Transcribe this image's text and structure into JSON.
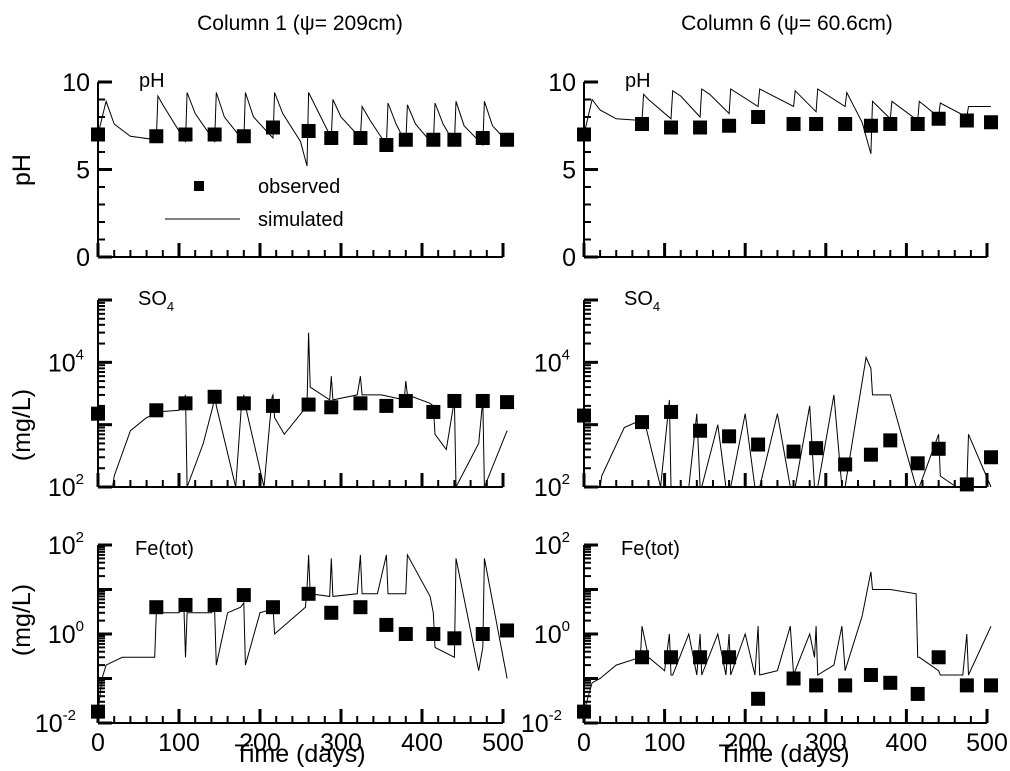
{
  "columns": [
    {
      "title": "Column 1 (ψ= 209cm)"
    },
    {
      "title": "Column 6 (ψ= 60.6cm)"
    }
  ],
  "row_labels": {
    "ph_y": "pH",
    "so4_y": "(mg/L)",
    "fe_y": "(mg/L)",
    "ph_panel": "pH",
    "so4_panel": "SO",
    "so4_sub": "4",
    "fe_panel": "Fe(tot)"
  },
  "xlabel": "Time (days)",
  "legend": {
    "observed": "observed",
    "simulated": "simulated"
  },
  "ticks": {
    "x": [
      "0",
      "100",
      "200",
      "300",
      "400",
      "500"
    ],
    "ph": [
      "0",
      "5",
      "10"
    ],
    "so4": [
      {
        "base": "10",
        "exp": "2"
      },
      {
        "base": "10",
        "exp": "4"
      }
    ],
    "fe": [
      {
        "base": "10",
        "exp": "-2"
      },
      {
        "base": "10",
        "exp": "0"
      },
      {
        "base": "10",
        "exp": "2"
      }
    ]
  },
  "chart_data": [
    {
      "type": "scatter",
      "panel": "Column 1 pH",
      "xlim": [
        0,
        500
      ],
      "ylim": [
        0,
        10
      ],
      "series": [
        {
          "name": "observed",
          "x": [
            0,
            72,
            108,
            144,
            180,
            216,
            260,
            288,
            324,
            356,
            380,
            414,
            440,
            475,
            505
          ],
          "y": [
            7.0,
            6.9,
            7.0,
            7.0,
            6.9,
            7.4,
            7.2,
            6.8,
            6.8,
            6.4,
            6.7,
            6.7,
            6.7,
            6.8,
            6.7
          ]
        },
        {
          "name": "simulated",
          "x": [
            0,
            10,
            20,
            40,
            72,
            74,
            80,
            108,
            110,
            120,
            144,
            146,
            156,
            180,
            182,
            192,
            216,
            218,
            228,
            250,
            258,
            260,
            288,
            290,
            300,
            324,
            326,
            336,
            356,
            358,
            368,
            380,
            382,
            392,
            414,
            416,
            426,
            440,
            442,
            452,
            475,
            477,
            487,
            505
          ],
          "y": [
            7.0,
            8.9,
            7.6,
            6.9,
            6.7,
            9.2,
            8.7,
            6.6,
            9.4,
            8.2,
            6.6,
            9.4,
            8.0,
            6.6,
            9.4,
            8.0,
            6.8,
            9.4,
            8.2,
            6.6,
            5.2,
            9.4,
            6.8,
            9.0,
            8.0,
            6.8,
            8.6,
            7.8,
            6.4,
            8.8,
            7.6,
            6.5,
            8.7,
            7.6,
            6.4,
            8.8,
            7.6,
            6.5,
            8.9,
            7.5,
            6.4,
            8.9,
            7.5,
            6.6
          ]
        }
      ]
    },
    {
      "type": "scatter",
      "panel": "Column 6 pH",
      "xlim": [
        0,
        500
      ],
      "ylim": [
        0,
        10
      ],
      "series": [
        {
          "name": "observed",
          "x": [
            0,
            72,
            108,
            144,
            180,
            216,
            260,
            288,
            324,
            356,
            380,
            414,
            440,
            475,
            505
          ],
          "y": [
            7.0,
            7.6,
            7.4,
            7.4,
            7.5,
            8.0,
            7.6,
            7.6,
            7.6,
            7.5,
            7.6,
            7.6,
            7.9,
            7.8,
            7.7
          ]
        },
        {
          "name": "simulated",
          "x": [
            0,
            10,
            20,
            40,
            72,
            74,
            80,
            108,
            110,
            120,
            144,
            146,
            156,
            180,
            182,
            216,
            218,
            260,
            262,
            288,
            290,
            324,
            326,
            345,
            356,
            358,
            380,
            382,
            414,
            416,
            440,
            442,
            475,
            477,
            505
          ],
          "y": [
            7.0,
            9.0,
            8.4,
            7.9,
            7.8,
            9.3,
            9.0,
            7.9,
            9.5,
            9.2,
            8.0,
            9.6,
            9.3,
            8.2,
            9.6,
            8.6,
            9.6,
            8.6,
            9.5,
            8.3,
            9.6,
            8.6,
            9.4,
            7.7,
            5.9,
            8.9,
            7.9,
            8.9,
            7.8,
            8.9,
            8.0,
            8.8,
            8.0,
            8.6,
            8.6
          ]
        }
      ]
    },
    {
      "type": "scatter",
      "panel": "Column 1 SO4",
      "xlim": [
        0,
        500
      ],
      "ylim": [
        100,
        100000
      ],
      "yscale": "log",
      "series": [
        {
          "name": "observed",
          "x": [
            0,
            72,
            108,
            144,
            180,
            216,
            260,
            288,
            324,
            356,
            380,
            414,
            440,
            475,
            505
          ],
          "y": [
            1500,
            1700,
            2200,
            2800,
            2200,
            2000,
            2100,
            1900,
            2200,
            2000,
            2400,
            1600,
            2400,
            2400,
            2300
          ]
        },
        {
          "name": "simulated",
          "x": [
            0,
            18,
            20,
            40,
            60,
            72,
            74,
            100,
            106,
            108,
            110,
            130,
            142,
            144,
            146,
            170,
            177,
            180,
            182,
            205,
            215,
            216,
            218,
            230,
            258,
            260,
            262,
            286,
            288,
            290,
            320,
            324,
            326,
            350,
            378,
            380,
            382,
            410,
            414,
            416,
            430,
            440,
            442,
            470,
            475,
            477,
            505
          ],
          "y": [
            100,
            100,
            150,
            800,
            1300,
            1500,
            1600,
            1700,
            2500,
            3000,
            100,
            500,
            2000,
            3500,
            2000,
            100,
            2000,
            3000,
            2000,
            100,
            2800,
            3000,
            1300,
            700,
            2000,
            30000,
            4000,
            2500,
            6000,
            2500,
            3000,
            6000,
            3000,
            3000,
            2500,
            5000,
            3000,
            2200,
            2000,
            700,
            400,
            2500,
            100,
            500,
            2500,
            100,
            800
          ]
        }
      ]
    },
    {
      "type": "scatter",
      "panel": "Column 6 SO4",
      "xlim": [
        0,
        500
      ],
      "ylim": [
        100,
        100000
      ],
      "yscale": "log",
      "series": [
        {
          "name": "observed",
          "x": [
            0,
            72,
            108,
            144,
            180,
            216,
            260,
            288,
            324,
            356,
            380,
            414,
            440,
            475,
            505
          ],
          "y": [
            1400,
            1100,
            1600,
            800,
            650,
            480,
            370,
            420,
            230,
            330,
            560,
            240,
            410,
            110,
            300
          ]
        },
        {
          "name": "simulated",
          "x": [
            0,
            20,
            22,
            50,
            72,
            74,
            95,
            106,
            108,
            110,
            130,
            140,
            144,
            146,
            166,
            176,
            180,
            182,
            200,
            212,
            216,
            218,
            240,
            256,
            260,
            262,
            280,
            286,
            288,
            290,
            310,
            320,
            324,
            326,
            350,
            356,
            358,
            380,
            412,
            414,
            416,
            440,
            442,
            462,
            475,
            477,
            505
          ],
          "y": [
            100,
            100,
            150,
            900,
            1200,
            1300,
            100,
            2500,
            100,
            100,
            100,
            1500,
            100,
            100,
            1000,
            100,
            100,
            100,
            1500,
            100,
            100,
            100,
            1500,
            100,
            100,
            100,
            2000,
            100,
            100,
            100,
            3000,
            100,
            100,
            150,
            12000,
            8000,
            3000,
            3000,
            100,
            100,
            100,
            700,
            150,
            100,
            100,
            700,
            100
          ]
        }
      ]
    },
    {
      "type": "scatter",
      "panel": "Column 1 Fe(tot)",
      "xlim": [
        0,
        500
      ],
      "ylim": [
        0.01,
        100
      ],
      "yscale": "log",
      "series": [
        {
          "name": "observed",
          "x": [
            0,
            72,
            108,
            144,
            180,
            216,
            260,
            288,
            324,
            356,
            380,
            414,
            440,
            475,
            505
          ],
          "y": [
            0.018,
            4.0,
            4.5,
            4.5,
            7.5,
            4.0,
            8.0,
            3.0,
            4.0,
            1.6,
            1.0,
            1.0,
            0.8,
            1.0,
            1.2
          ]
        },
        {
          "name": "simulated",
          "x": [
            0,
            5,
            10,
            30,
            70,
            72,
            80,
            100,
            106,
            108,
            110,
            130,
            140,
            144,
            146,
            160,
            176,
            180,
            182,
            200,
            212,
            216,
            218,
            256,
            258,
            260,
            262,
            286,
            288,
            290,
            320,
            324,
            326,
            345,
            356,
            358,
            380,
            382,
            410,
            414,
            416,
            440,
            442,
            470,
            475,
            477,
            505
          ],
          "y": [
            0.018,
            0.1,
            0.2,
            0.3,
            0.3,
            3.0,
            3.0,
            3.0,
            4.0,
            0.3,
            3.0,
            3.0,
            3.0,
            3.5,
            0.2,
            3.0,
            4.0,
            5.0,
            0.2,
            3.0,
            3.5,
            4.0,
            1.0,
            4.0,
            10,
            60,
            8.0,
            7.0,
            50,
            7.0,
            8.0,
            60,
            8.0,
            8.0,
            60,
            8.0,
            8.0,
            60,
            7.0,
            3.0,
            0.5,
            0.3,
            50,
            0.15,
            0.5,
            50,
            0.1
          ]
        }
      ]
    },
    {
      "type": "scatter",
      "panel": "Column 6 Fe(tot)",
      "xlim": [
        0,
        500
      ],
      "ylim": [
        0.01,
        100
      ],
      "yscale": "log",
      "series": [
        {
          "name": "observed",
          "x": [
            0,
            72,
            108,
            144,
            180,
            216,
            260,
            288,
            324,
            356,
            380,
            414,
            440,
            475,
            505
          ],
          "y": [
            0.018,
            0.3,
            0.3,
            0.3,
            0.3,
            0.035,
            0.1,
            0.07,
            0.07,
            0.12,
            0.08,
            0.045,
            0.3,
            0.07,
            0.07
          ]
        },
        {
          "name": "simulated",
          "x": [
            0,
            10,
            20,
            40,
            70,
            72,
            80,
            100,
            106,
            108,
            110,
            130,
            140,
            144,
            146,
            166,
            176,
            180,
            182,
            200,
            212,
            216,
            218,
            240,
            256,
            260,
            262,
            280,
            286,
            288,
            290,
            310,
            320,
            324,
            326,
            345,
            356,
            358,
            380,
            412,
            414,
            416,
            440,
            442,
            470,
            475,
            477,
            505
          ],
          "y": [
            0.018,
            0.08,
            0.1,
            0.2,
            0.3,
            1.5,
            0.3,
            0.15,
            1.0,
            0.12,
            0.12,
            1.0,
            0.12,
            1.0,
            0.12,
            1.0,
            0.12,
            1.0,
            0.12,
            1.0,
            0.12,
            1.5,
            0.12,
            0.15,
            1.5,
            0.12,
            0.15,
            1.0,
            0.3,
            1.5,
            0.12,
            0.2,
            1.5,
            0.15,
            0.2,
            2.5,
            25,
            10,
            10,
            8.0,
            0.3,
            0.3,
            0.15,
            0.12,
            0.12,
            1.0,
            0.12,
            1.5
          ]
        }
      ]
    }
  ]
}
